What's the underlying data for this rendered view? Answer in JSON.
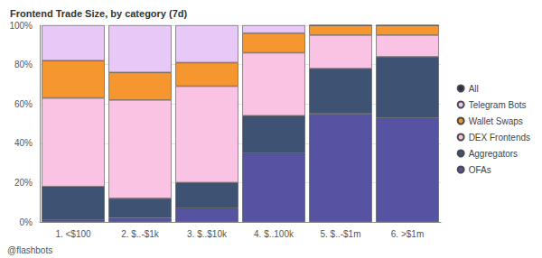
{
  "chart_data": {
    "type": "bar",
    "title": "Frontend Trade Size, by category (7d)",
    "stacked": true,
    "grid": true,
    "legend": "right",
    "annotations": [
      "@flashbots"
    ],
    "categories": [
      "1. <$100",
      "2. $..-$1k",
      "3. $..$10k",
      "4. $..100k",
      "5. $..-$1m",
      "6. >$1m"
    ],
    "ylim": [
      0,
      100
    ],
    "yticks": [
      {
        "value": 0,
        "label": "0%"
      },
      {
        "value": 20,
        "label": "20%"
      },
      {
        "value": 40,
        "label": "40%"
      },
      {
        "value": 60,
        "label": "60%"
      },
      {
        "value": 80,
        "label": "80%"
      },
      {
        "value": 100,
        "label": "100%"
      }
    ],
    "series": [
      {
        "name": "All",
        "color": "#2b2d42",
        "values": [
          null,
          null,
          null,
          null,
          null,
          null
        ]
      },
      {
        "name": "Telegram Bots",
        "color": "#e8c8f6",
        "values": [
          18,
          24,
          19,
          4,
          0,
          0
        ]
      },
      {
        "name": "Wallet Swaps",
        "color": "#f5962f",
        "values": [
          19,
          14,
          12,
          10,
          5,
          5
        ]
      },
      {
        "name": "DEX Frontends",
        "color": "#fbc3e3",
        "values": [
          45,
          50,
          49,
          32,
          17,
          11
        ]
      },
      {
        "name": "Aggregators",
        "color": "#3e5373",
        "values": [
          17,
          10,
          13,
          19,
          23,
          31
        ]
      },
      {
        "name": "OFAs",
        "color": "#5654a2",
        "values": [
          1,
          2,
          7,
          35,
          55,
          53
        ]
      }
    ]
  }
}
